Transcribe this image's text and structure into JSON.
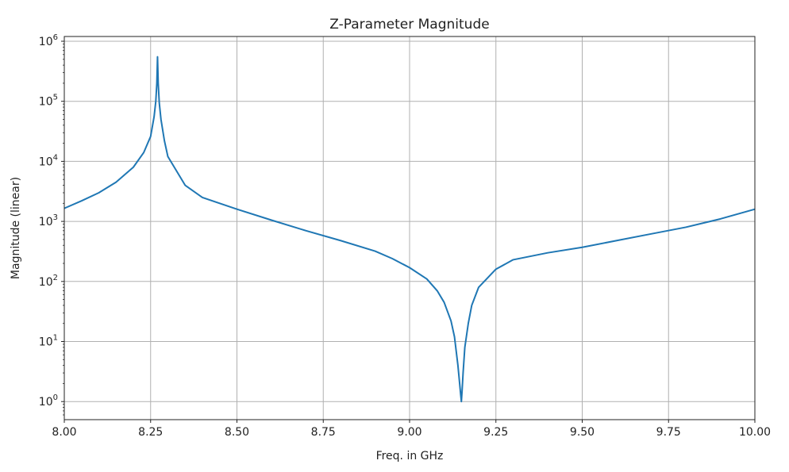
{
  "chart_data": {
    "type": "line",
    "title": "Z-Parameter Magnitude",
    "xlabel": "Freq. in GHz",
    "ylabel": "Magnitude (linear)",
    "xlim": [
      8.0,
      10.0
    ],
    "ylim": [
      0.5,
      1200000
    ],
    "yscale": "log",
    "grid": true,
    "line_color": "#1f77b4",
    "x_ticks": [
      "8.00",
      "8.25",
      "8.50",
      "8.75",
      "9.00",
      "9.25",
      "9.50",
      "9.75",
      "10.00"
    ],
    "y_ticks": [
      {
        "base": "10",
        "exp": "0",
        "value": 1
      },
      {
        "base": "10",
        "exp": "1",
        "value": 10
      },
      {
        "base": "10",
        "exp": "2",
        "value": 100
      },
      {
        "base": "10",
        "exp": "3",
        "value": 1000
      },
      {
        "base": "10",
        "exp": "4",
        "value": 10000
      },
      {
        "base": "10",
        "exp": "5",
        "value": 100000
      },
      {
        "base": "10",
        "exp": "6",
        "value": 1000000
      }
    ],
    "series": [
      {
        "x": [
          8.0,
          8.05,
          8.1,
          8.15,
          8.2,
          8.23,
          8.25,
          8.26,
          8.265,
          8.268,
          8.27,
          8.272,
          8.275,
          8.28,
          8.29,
          8.3,
          8.35,
          8.4,
          8.5,
          8.6,
          8.7,
          8.8,
          8.9,
          8.95,
          9.0,
          9.05,
          9.08,
          9.1,
          9.12,
          9.13,
          9.14,
          9.145,
          9.148,
          9.15,
          9.152,
          9.155,
          9.16,
          9.17,
          9.18,
          9.2,
          9.25,
          9.3,
          9.4,
          9.5,
          9.6,
          9.7,
          9.8,
          9.9,
          10.0
        ],
        "y": [
          1650,
          2200,
          3000,
          4500,
          8000,
          14000,
          26000,
          55000,
          100000,
          200000,
          550000,
          200000,
          95000,
          50000,
          22000,
          12000,
          4000,
          2500,
          1600,
          1050,
          700,
          480,
          320,
          240,
          170,
          110,
          70,
          45,
          22,
          12,
          4,
          2,
          1.3,
          1.0,
          1.5,
          3,
          8,
          20,
          40,
          80,
          160,
          230,
          300,
          370,
          480,
          620,
          800,
          1100,
          1600
        ]
      }
    ]
  }
}
